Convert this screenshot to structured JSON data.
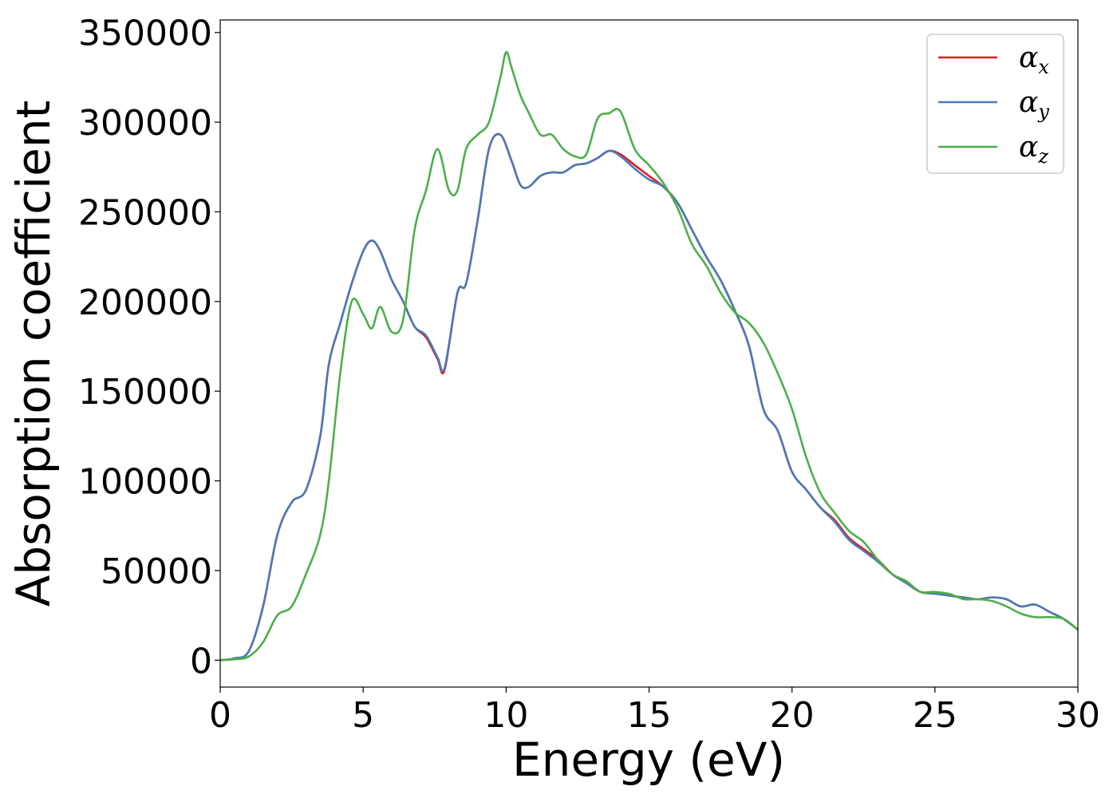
{
  "chart_data": {
    "type": "line",
    "title": "",
    "xlabel": "Energy (eV)",
    "ylabel": "Absorption coefficient",
    "xlim": [
      0,
      30
    ],
    "ylim": [
      -15000,
      357000
    ],
    "xticks": [
      0,
      5,
      10,
      15,
      20,
      25,
      30
    ],
    "yticks": [
      0,
      50000,
      100000,
      150000,
      200000,
      250000,
      300000,
      350000
    ],
    "grid": false,
    "legend_position": "top-right",
    "series": [
      {
        "name": "α_x",
        "legend_symbol": "α",
        "legend_subscript": "x",
        "color": "#e41a1c",
        "x": [
          0,
          0.5,
          1,
          1.5,
          2,
          2.5,
          3,
          3.5,
          3.8,
          4.2,
          4.6,
          5,
          5.3,
          5.6,
          6,
          6.4,
          6.8,
          7.2,
          7.6,
          7.85,
          8.3,
          8.6,
          9,
          9.4,
          9.8,
          10.2,
          10.5,
          10.8,
          11.2,
          11.6,
          12,
          12.4,
          12.8,
          13.2,
          13.6,
          14,
          14.5,
          15,
          15.5,
          16,
          16.5,
          17,
          17.5,
          18,
          18.5,
          19,
          19.5,
          20,
          20.5,
          21,
          21.5,
          22,
          22.5,
          23,
          23.5,
          24,
          24.5,
          25,
          25.5,
          26,
          26.5,
          27,
          27.5,
          28,
          28.5,
          29,
          29.5,
          30
        ],
        "values": [
          0,
          1000,
          5000,
          30000,
          70000,
          88000,
          95000,
          125000,
          165000,
          188000,
          210000,
          228000,
          234000,
          228000,
          212000,
          200000,
          186000,
          180000,
          168000,
          162000,
          205000,
          210000,
          245000,
          285000,
          293000,
          278000,
          265000,
          264000,
          270000,
          272000,
          272000,
          276000,
          277000,
          280000,
          284000,
          282000,
          276000,
          270000,
          264000,
          255000,
          240000,
          225000,
          212000,
          195000,
          175000,
          140000,
          128000,
          105000,
          95000,
          85000,
          78000,
          68000,
          62000,
          56000,
          48000,
          43000,
          38000,
          38000,
          36000,
          35000,
          34000,
          35000,
          34000,
          30000,
          31000,
          27000,
          23000,
          17000
        ]
      },
      {
        "name": "α_y",
        "legend_symbol": "α",
        "legend_subscript": "y",
        "color": "#4a7ab8",
        "x": [
          0,
          0.5,
          1,
          1.5,
          2,
          2.5,
          3,
          3.5,
          3.8,
          4.2,
          4.6,
          5,
          5.3,
          5.6,
          6,
          6.4,
          6.8,
          7.2,
          7.6,
          7.85,
          8.3,
          8.6,
          9,
          9.4,
          9.8,
          10.2,
          10.5,
          10.8,
          11.2,
          11.6,
          12,
          12.4,
          12.8,
          13.2,
          13.6,
          14,
          14.5,
          15,
          15.5,
          16,
          16.5,
          17,
          17.5,
          18,
          18.5,
          19,
          19.5,
          20,
          20.5,
          21,
          21.5,
          22,
          22.5,
          23,
          23.5,
          24,
          24.5,
          25,
          25.5,
          26,
          26.5,
          27,
          27.5,
          28,
          28.5,
          29,
          29.5,
          30
        ],
        "values": [
          0,
          1000,
          5000,
          30000,
          70000,
          88000,
          95000,
          125000,
          165000,
          188000,
          210000,
          228000,
          234000,
          228000,
          212000,
          200000,
          186000,
          181000,
          169000,
          163000,
          205000,
          210000,
          245000,
          285000,
          293000,
          278000,
          265000,
          264000,
          270000,
          272000,
          272000,
          276000,
          277000,
          280000,
          284000,
          281000,
          274000,
          268000,
          264000,
          255000,
          240000,
          225000,
          212000,
          195000,
          175000,
          140000,
          128000,
          105000,
          95000,
          85000,
          77000,
          67000,
          61000,
          55000,
          48000,
          43000,
          38000,
          37000,
          36000,
          35000,
          34000,
          35000,
          34000,
          30000,
          31000,
          27000,
          23000,
          17000
        ]
      },
      {
        "name": "α_z",
        "legend_symbol": "α",
        "legend_subscript": "z",
        "color": "#4daf4a",
        "x": [
          0,
          0.5,
          1,
          1.5,
          2,
          2.5,
          3,
          3.5,
          3.8,
          4.2,
          4.6,
          5,
          5.3,
          5.6,
          6,
          6.4,
          6.8,
          7.2,
          7.6,
          8,
          8.3,
          8.6,
          9,
          9.4,
          9.8,
          10,
          10.2,
          10.5,
          10.8,
          11.2,
          11.6,
          12,
          12.4,
          12.8,
          13.2,
          13.6,
          14,
          14.5,
          15,
          15.5,
          16,
          16.5,
          17,
          17.5,
          18,
          18.5,
          19,
          19.5,
          20,
          20.5,
          21,
          21.5,
          22,
          22.5,
          23,
          23.5,
          24,
          24.5,
          25,
          25.5,
          26,
          26.5,
          27,
          27.5,
          28,
          28.5,
          29,
          29.5,
          30
        ],
        "values": [
          0,
          500,
          2000,
          10000,
          25000,
          30000,
          48000,
          70000,
          100000,
          160000,
          200000,
          193000,
          185000,
          197000,
          183000,
          190000,
          240000,
          262000,
          285000,
          262000,
          262000,
          285000,
          293000,
          300000,
          325000,
          339000,
          330000,
          315000,
          305000,
          293000,
          293000,
          285000,
          281000,
          282000,
          302000,
          305000,
          306000,
          285000,
          276000,
          266000,
          252000,
          232000,
          220000,
          205000,
          194000,
          188000,
          177000,
          160000,
          140000,
          113000,
          93000,
          82000,
          72000,
          66000,
          56000,
          48000,
          44000,
          38000,
          38000,
          37000,
          34000,
          34000,
          33000,
          30000,
          26000,
          24000,
          24000,
          23000,
          17000
        ]
      }
    ]
  }
}
